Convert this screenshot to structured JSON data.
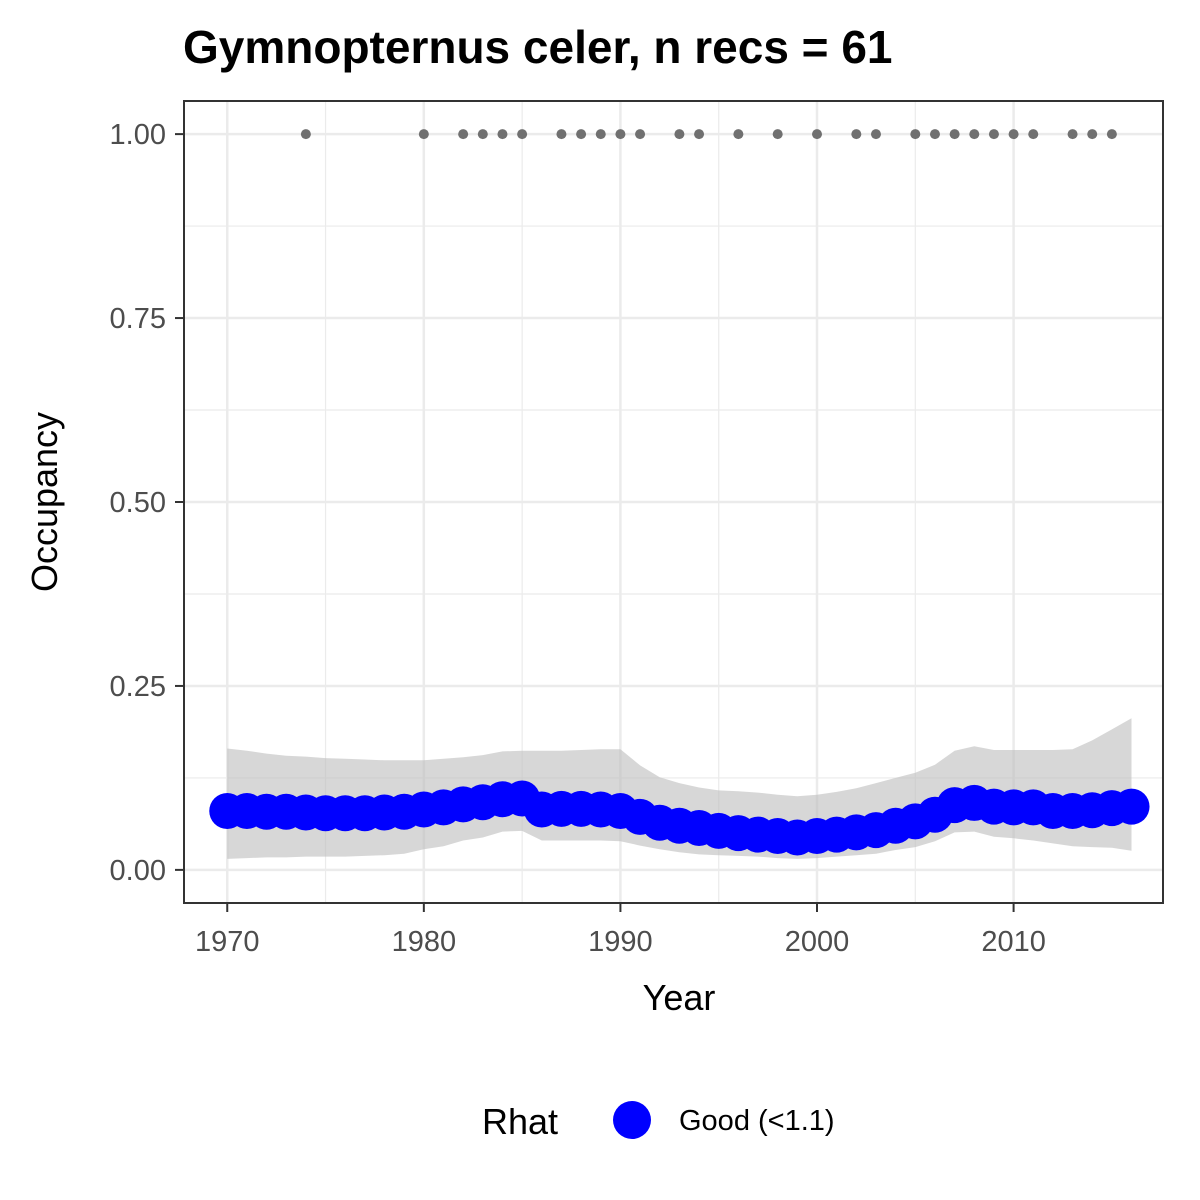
{
  "chart_data": {
    "type": "line",
    "title": "Gymnopternus celer, n recs = 61",
    "xlabel": "Year",
    "ylabel": "Occupancy",
    "xlim": [
      1967.8,
      2017.6
    ],
    "ylim": [
      -0.045,
      1.045
    ],
    "x_ticks": [
      1970,
      1980,
      1990,
      2000,
      2010
    ],
    "x_tick_labels": [
      "1970",
      "1980",
      "1990",
      "2000",
      "2010"
    ],
    "y_ticks": [
      0,
      0.25,
      0.5,
      0.75,
      1.0
    ],
    "y_tick_labels": [
      "0.00",
      "0.25",
      "0.50",
      "0.75",
      "1.00"
    ],
    "grid": true,
    "legend": {
      "title": "Rhat",
      "position": "bottom",
      "entries": [
        {
          "label": "Good (<1.1)",
          "color": "#0000ff"
        }
      ]
    },
    "colors": {
      "estimate": "#0000ff",
      "ribbon": "#bebebe",
      "records": "#707070",
      "grid": "#ebebeb",
      "panel_border": "#333333"
    },
    "estimate": {
      "name": "Good (<1.1)",
      "x": [
        1970,
        1971,
        1972,
        1973,
        1974,
        1975,
        1976,
        1977,
        1978,
        1979,
        1980,
        1981,
        1982,
        1983,
        1984,
        1985,
        1986,
        1987,
        1988,
        1989,
        1990,
        1991,
        1992,
        1993,
        1994,
        1995,
        1996,
        1997,
        1998,
        1999,
        2000,
        2001,
        2002,
        2003,
        2004,
        2005,
        2006,
        2007,
        2008,
        2009,
        2010,
        2011,
        2012,
        2013,
        2014,
        2015,
        2016
      ],
      "y": [
        0.08,
        0.08,
        0.079,
        0.079,
        0.078,
        0.077,
        0.077,
        0.077,
        0.078,
        0.079,
        0.082,
        0.085,
        0.089,
        0.092,
        0.096,
        0.097,
        0.082,
        0.083,
        0.083,
        0.082,
        0.08,
        0.072,
        0.064,
        0.06,
        0.057,
        0.053,
        0.05,
        0.048,
        0.046,
        0.044,
        0.046,
        0.048,
        0.051,
        0.054,
        0.06,
        0.066,
        0.075,
        0.088,
        0.091,
        0.086,
        0.085,
        0.085,
        0.08,
        0.08,
        0.081,
        0.084,
        0.086
      ],
      "lower": [
        0.015,
        0.016,
        0.017,
        0.017,
        0.018,
        0.018,
        0.018,
        0.019,
        0.02,
        0.022,
        0.028,
        0.032,
        0.04,
        0.044,
        0.052,
        0.053,
        0.04,
        0.04,
        0.04,
        0.04,
        0.039,
        0.033,
        0.028,
        0.024,
        0.021,
        0.02,
        0.019,
        0.018,
        0.016,
        0.015,
        0.016,
        0.018,
        0.02,
        0.022,
        0.027,
        0.031,
        0.039,
        0.051,
        0.052,
        0.045,
        0.043,
        0.04,
        0.036,
        0.032,
        0.031,
        0.03,
        0.026
      ],
      "upper": [
        0.165,
        0.162,
        0.158,
        0.155,
        0.154,
        0.152,
        0.151,
        0.15,
        0.149,
        0.149,
        0.149,
        0.151,
        0.153,
        0.156,
        0.161,
        0.162,
        0.162,
        0.162,
        0.163,
        0.164,
        0.164,
        0.142,
        0.126,
        0.118,
        0.112,
        0.108,
        0.107,
        0.105,
        0.102,
        0.1,
        0.102,
        0.106,
        0.111,
        0.118,
        0.125,
        0.132,
        0.143,
        0.162,
        0.168,
        0.163,
        0.163,
        0.163,
        0.163,
        0.164,
        0.176,
        0.191,
        0.206
      ]
    },
    "records": {
      "name": "records",
      "x": [
        1974,
        1980,
        1982,
        1983,
        1984,
        1985,
        1987,
        1988,
        1989,
        1990,
        1991,
        1993,
        1994,
        1996,
        1998,
        2000,
        2002,
        2003,
        2005,
        2006,
        2007,
        2008,
        2009,
        2010,
        2011,
        2013,
        2014,
        2015
      ],
      "y": [
        1,
        1,
        1,
        1,
        1,
        1,
        1,
        1,
        1,
        1,
        1,
        1,
        1,
        1,
        1,
        1,
        1,
        1,
        1,
        1,
        1,
        1,
        1,
        1,
        1,
        1,
        1,
        1
      ]
    }
  }
}
